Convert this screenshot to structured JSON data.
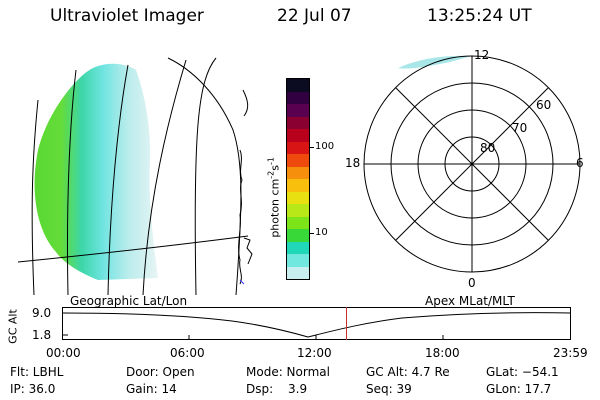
{
  "header": {
    "instrument": "Ultraviolet Imager",
    "date": "22 Jul 07",
    "time": "13:25:24 UT"
  },
  "colorbar": {
    "label": "photon cm",
    "label_exp1": "-2",
    "label_s": "s",
    "label_exp2": "-1",
    "ticks": [
      "100",
      "10"
    ],
    "colors": [
      "#0b0b22",
      "#300040",
      "#5a0050",
      "#8a0030",
      "#b8001c",
      "#d81414",
      "#ee4a0e",
      "#f6900c",
      "#f8c00c",
      "#e8e010",
      "#b8e818",
      "#7ce418",
      "#38d838",
      "#20d8b8",
      "#70e8e0",
      "#c8eef0"
    ]
  },
  "geo_panel": {
    "label": "Geographic Lat/Lon"
  },
  "polar_panel": {
    "label": "Apex MLat/MLT",
    "lat_labels": [
      "80",
      "70",
      "60"
    ],
    "mlt_labels": {
      "top": "12",
      "left": "18",
      "right": "6",
      "bottom": "0"
    }
  },
  "altitude_plot": {
    "ylabel": "GC Alt",
    "yticks": [
      "9.0",
      "1.8"
    ],
    "xticks": [
      "00:00",
      "06:00",
      "12:00",
      "18:00",
      "23:59"
    ],
    "current_time_fraction": 0.559
  },
  "status": {
    "flt": "Flt: LBHL",
    "ip": "IP: 36.0",
    "door": "Door: Open",
    "gain": "Gain: 14",
    "mode": "Mode: Normal",
    "dsp": "Dsp:",
    "dsp_value": "3.9",
    "gc_alt": "GC Alt: 4.7 Re",
    "seq": "Seq: 39",
    "glat": "GLat: −54.1",
    "glon": "GLon:  17.7"
  }
}
